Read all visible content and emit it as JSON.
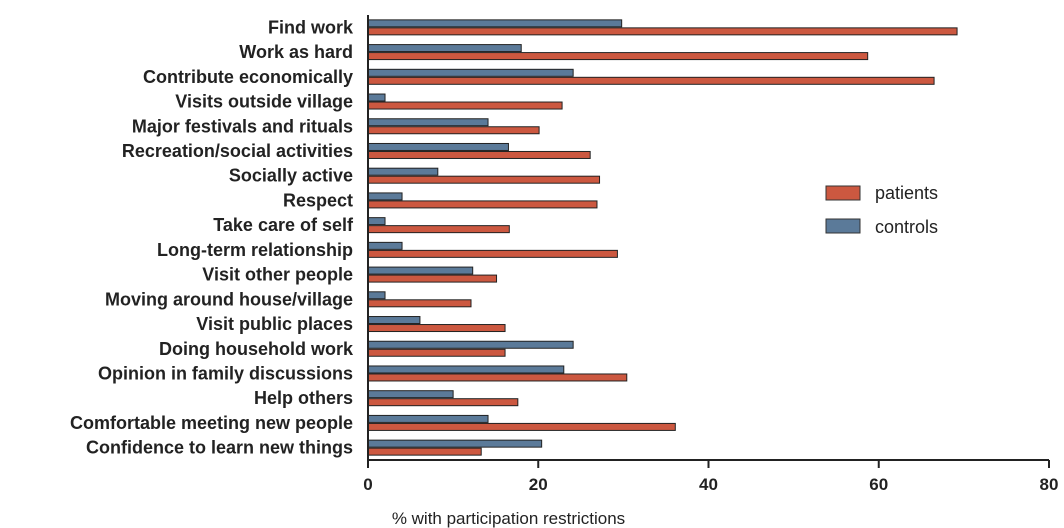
{
  "chart_data": {
    "type": "bar",
    "orientation": "horizontal",
    "categories": [
      "Find work",
      "Work as hard",
      "Contribute economically",
      "Visits outside village",
      "Major festivals and rituals",
      "Recreation/social activities",
      "Socially active",
      "Respect",
      "Take care of self",
      "Long-term relationship",
      "Visit other people",
      "Moving around house/village",
      "Visit public places",
      "Doing household work",
      "Opinion in family discussions",
      "Help others",
      "Comfortable meeting new people",
      "Confidence to learn new things"
    ],
    "series": [
      {
        "name": "controls",
        "color": "#5b7a99",
        "values": [
          29.8,
          18,
          24.1,
          2,
          14.1,
          16.5,
          8.2,
          4,
          2,
          4,
          12.3,
          2,
          6.1,
          24.1,
          23,
          10,
          14.1,
          20.4
        ]
      },
      {
        "name": "patients",
        "color": "#cc5840",
        "values": [
          69.2,
          58.7,
          66.5,
          22.8,
          20.1,
          26.1,
          27.2,
          26.9,
          16.6,
          29.3,
          15.1,
          12.1,
          16.1,
          16.1,
          30.4,
          17.6,
          36.1,
          13.3
        ]
      }
    ],
    "xlabel": "% with participation restrictions",
    "ylabel": "",
    "xlim": [
      0,
      80
    ],
    "xticks": [
      0,
      20,
      40,
      60,
      80
    ],
    "legend": {
      "placement": "right",
      "entries": [
        "patients",
        "controls"
      ]
    },
    "grid": false
  }
}
